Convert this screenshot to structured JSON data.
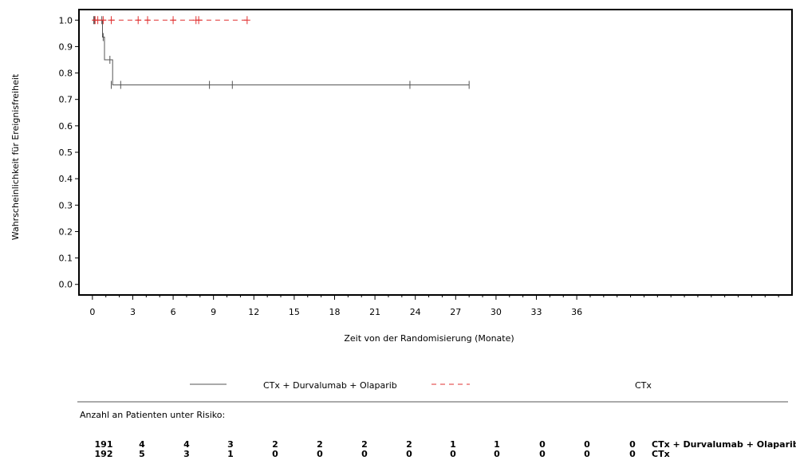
{
  "chart_data": {
    "type": "line",
    "subtype": "kaplan-meier",
    "ylabel": "Wahrscheinlichkeit für Ereignisfreiheit",
    "xlabel": "Zeit von der Randomisierung (Monate)",
    "xlim": [
      -1,
      52
    ],
    "ylim": [
      -0.04,
      1.04
    ],
    "xticks": [
      0,
      3,
      6,
      9,
      12,
      15,
      18,
      21,
      24,
      27,
      30,
      33,
      36
    ],
    "yticks": [
      0.0,
      0.1,
      0.2,
      0.3,
      0.4,
      0.5,
      0.6,
      0.7,
      0.8,
      0.9,
      1.0
    ],
    "xtick_labels": [
      "0",
      "3",
      "6",
      "9",
      "12",
      "15",
      "18",
      "21",
      "24",
      "27",
      "30",
      "33",
      "36"
    ],
    "ytick_labels": [
      "0.0",
      "0.1",
      "0.2",
      "0.3",
      "0.4",
      "0.5",
      "0.6",
      "0.7",
      "0.8",
      "0.9",
      "1.0"
    ],
    "series": [
      {
        "name": "CTx + Durvalumab + Olaparib",
        "color": "#555555",
        "dash": "none",
        "steps": [
          [
            0,
            1.0
          ],
          [
            0.75,
            1.0
          ],
          [
            0.75,
            0.936
          ],
          [
            0.9,
            0.936
          ],
          [
            0.9,
            0.85
          ],
          [
            1.5,
            0.85
          ],
          [
            1.5,
            0.755
          ],
          [
            28.0,
            0.755
          ]
        ],
        "censored": [
          [
            0.1,
            1.0
          ],
          [
            0.15,
            1.0
          ],
          [
            0.7,
            1.0
          ],
          [
            0.8,
            0.936
          ],
          [
            1.3,
            0.85
          ],
          [
            1.4,
            0.755
          ],
          [
            2.1,
            0.755
          ],
          [
            8.7,
            0.755
          ],
          [
            10.4,
            0.755
          ],
          [
            23.6,
            0.755
          ],
          [
            28.0,
            0.755
          ]
        ]
      },
      {
        "name": "CTx",
        "color": "#e03030",
        "dash": "6,5",
        "steps": [
          [
            0,
            1.0
          ],
          [
            11.5,
            1.0
          ]
        ],
        "censored": [
          [
            0.2,
            1.0
          ],
          [
            0.4,
            1.0
          ],
          [
            0.8,
            1.0
          ],
          [
            1.4,
            1.0
          ],
          [
            3.4,
            1.0
          ],
          [
            4.1,
            1.0
          ],
          [
            6.0,
            1.0
          ],
          [
            7.7,
            1.0
          ],
          [
            7.9,
            1.0
          ],
          [
            11.5,
            1.0
          ]
        ]
      }
    ],
    "legend": [
      {
        "name": "CTx + Durvalumab + Olaparib",
        "color": "#555555",
        "dash": "none"
      },
      {
        "name": "CTx",
        "color": "#e03030",
        "dash": "6,5"
      }
    ],
    "risk_table": {
      "header": "Anzahl an Patienten unter Risiko:",
      "rows": [
        {
          "label": "CTx + Durvalumab + Olaparib",
          "values": [
            "191",
            "4",
            "4",
            "3",
            "2",
            "2",
            "2",
            "2",
            "1",
            "1",
            "0",
            "0",
            "0"
          ]
        },
        {
          "label": "CTx",
          "values": [
            "192",
            "5",
            "3",
            "1",
            "0",
            "0",
            "0",
            "0",
            "0",
            "0",
            "0",
            "0",
            "0"
          ]
        }
      ]
    }
  }
}
